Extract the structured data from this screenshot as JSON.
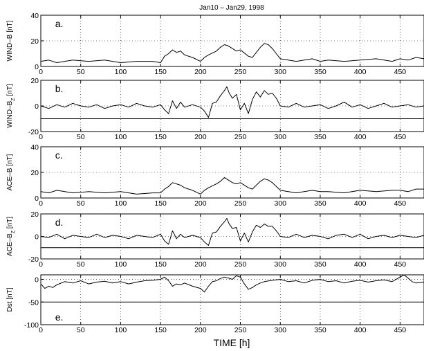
{
  "figure": {
    "title": "Jan10 – Jan29, 1998",
    "xlabel": "TIME [h]",
    "xlim": [
      0,
      480
    ],
    "xticks": [
      0,
      50,
      100,
      150,
      200,
      250,
      300,
      350,
      400,
      450
    ]
  },
  "chart_data": [
    {
      "type": "line",
      "panel": "a.",
      "ylabel": "WIND–B [nT]",
      "ylim": [
        0,
        40
      ],
      "yticks": [
        0,
        20,
        40
      ],
      "grid": true,
      "series": [
        {
          "x": [
            0,
            10,
            20,
            40,
            60,
            80,
            100,
            120,
            140,
            150,
            155,
            160,
            165,
            170,
            175,
            180,
            190,
            200,
            205,
            210,
            220,
            225,
            230,
            235,
            240,
            245,
            250,
            260,
            265,
            270,
            275,
            280,
            285,
            290,
            295,
            300,
            310,
            320,
            330,
            340,
            350,
            360,
            380,
            400,
            420,
            440,
            450,
            460,
            470,
            480
          ],
          "y": [
            4,
            5,
            3,
            5,
            4,
            5,
            3,
            4,
            4,
            3,
            8,
            10,
            13,
            11,
            12,
            9,
            7,
            4,
            7,
            9,
            12,
            15,
            17,
            16,
            14,
            12,
            13,
            8,
            7,
            11,
            15,
            18,
            17,
            14,
            10,
            6,
            5,
            4,
            5,
            6,
            4,
            5,
            4,
            5,
            6,
            4,
            6,
            5,
            7,
            6
          ]
        }
      ]
    },
    {
      "type": "line",
      "panel": "b.",
      "ylabel": "WIND–B_Z [nT]",
      "ylim": [
        -20,
        20
      ],
      "yticks": [
        -20,
        0,
        20
      ],
      "reference_line": -10,
      "grid": true,
      "series": [
        {
          "x": [
            0,
            10,
            20,
            30,
            40,
            50,
            60,
            70,
            80,
            90,
            100,
            110,
            120,
            130,
            140,
            150,
            155,
            160,
            165,
            170,
            175,
            180,
            190,
            200,
            205,
            210,
            215,
            220,
            225,
            230,
            233,
            236,
            240,
            245,
            250,
            255,
            260,
            265,
            270,
            275,
            280,
            285,
            290,
            295,
            300,
            310,
            320,
            330,
            340,
            350,
            360,
            370,
            380,
            390,
            400,
            410,
            420,
            430,
            440,
            450,
            460,
            470,
            480
          ],
          "y": [
            0,
            -2,
            1,
            -1,
            2,
            0,
            -1,
            1,
            -2,
            0,
            1,
            -1,
            2,
            0,
            -1,
            1,
            -3,
            -6,
            4,
            -2,
            3,
            -1,
            1,
            -1,
            -4,
            -9,
            2,
            3,
            8,
            12,
            15,
            10,
            6,
            9,
            -3,
            2,
            -6,
            5,
            11,
            7,
            12,
            9,
            10,
            6,
            0,
            -1,
            2,
            -1,
            0,
            1,
            -2,
            0,
            3,
            -1,
            1,
            -2,
            0,
            2,
            -1,
            0,
            1,
            -1,
            0
          ]
        }
      ]
    },
    {
      "type": "line",
      "panel": "c.",
      "ylabel": "ACE–B [nT]",
      "ylim": [
        0,
        40
      ],
      "yticks": [
        0,
        20,
        40
      ],
      "grid": true,
      "series": [
        {
          "x": [
            0,
            10,
            20,
            40,
            60,
            80,
            100,
            120,
            140,
            150,
            155,
            160,
            165,
            170,
            175,
            180,
            190,
            200,
            205,
            210,
            220,
            225,
            230,
            235,
            240,
            245,
            250,
            260,
            265,
            270,
            275,
            280,
            285,
            290,
            295,
            300,
            310,
            320,
            330,
            340,
            350,
            360,
            380,
            400,
            420,
            440,
            450,
            460,
            470,
            480
          ],
          "y": [
            5,
            4,
            6,
            4,
            5,
            4,
            5,
            3,
            4,
            4,
            7,
            9,
            12,
            11,
            10,
            8,
            6,
            3,
            6,
            8,
            11,
            13,
            16,
            14,
            12,
            11,
            12,
            8,
            7,
            10,
            13,
            15,
            14,
            12,
            9,
            6,
            5,
            4,
            5,
            6,
            5,
            5,
            4,
            6,
            5,
            6,
            6,
            5,
            7,
            7
          ]
        }
      ]
    },
    {
      "type": "line",
      "panel": "d.",
      "ylabel": "ACE–B_Z [nT]",
      "ylim": [
        -20,
        20
      ],
      "yticks": [
        -20,
        0,
        20
      ],
      "reference_line": -10,
      "grid": true,
      "series": [
        {
          "x": [
            0,
            10,
            20,
            30,
            40,
            50,
            60,
            70,
            80,
            90,
            100,
            110,
            120,
            130,
            140,
            150,
            155,
            160,
            165,
            170,
            175,
            180,
            190,
            200,
            205,
            210,
            215,
            220,
            225,
            230,
            233,
            236,
            240,
            245,
            250,
            255,
            260,
            265,
            270,
            275,
            280,
            285,
            290,
            295,
            300,
            310,
            320,
            330,
            340,
            350,
            360,
            370,
            380,
            390,
            400,
            410,
            420,
            430,
            440,
            450,
            460,
            470,
            480
          ],
          "y": [
            0,
            -1,
            2,
            -2,
            1,
            0,
            -1,
            2,
            -1,
            1,
            0,
            -2,
            1,
            0,
            -1,
            2,
            -4,
            -7,
            5,
            -2,
            2,
            -1,
            1,
            -1,
            -5,
            -8,
            3,
            4,
            9,
            13,
            16,
            11,
            7,
            8,
            -4,
            3,
            -5,
            4,
            10,
            8,
            11,
            9,
            9,
            5,
            0,
            -1,
            2,
            -1,
            1,
            0,
            -2,
            1,
            2,
            -1,
            2,
            -2,
            0,
            1,
            -1,
            1,
            0,
            -1,
            1
          ]
        }
      ]
    },
    {
      "type": "line",
      "panel": "e.",
      "ylabel": "Dst [nT]",
      "ylim": [
        -100,
        10
      ],
      "yticks": [
        -100,
        -50,
        0
      ],
      "reference_line": -50,
      "grid": true,
      "series": [
        {
          "x": [
            0,
            5,
            10,
            15,
            20,
            30,
            40,
            50,
            60,
            70,
            80,
            90,
            100,
            110,
            120,
            130,
            140,
            150,
            155,
            160,
            165,
            170,
            175,
            180,
            190,
            200,
            205,
            210,
            215,
            220,
            225,
            230,
            235,
            240,
            245,
            250,
            255,
            260,
            265,
            270,
            275,
            280,
            290,
            300,
            310,
            320,
            330,
            340,
            350,
            360,
            370,
            380,
            390,
            400,
            410,
            420,
            430,
            440,
            450,
            455,
            460,
            465,
            470,
            480
          ],
          "y": [
            -10,
            -20,
            -15,
            -18,
            -12,
            -5,
            -8,
            -3,
            -10,
            -6,
            -4,
            -8,
            -5,
            -10,
            -6,
            -3,
            -2,
            0,
            5,
            -3,
            -15,
            -10,
            -12,
            -8,
            -15,
            -20,
            -28,
            -15,
            -5,
            -3,
            2,
            5,
            3,
            0,
            8,
            5,
            -10,
            -22,
            -18,
            -12,
            -8,
            -5,
            -2,
            0,
            -5,
            -3,
            -8,
            -2,
            0,
            -5,
            -3,
            -8,
            -4,
            -2,
            -6,
            -3,
            -1,
            -5,
            5,
            10,
            3,
            -5,
            -8,
            -6
          ]
        }
      ]
    }
  ]
}
